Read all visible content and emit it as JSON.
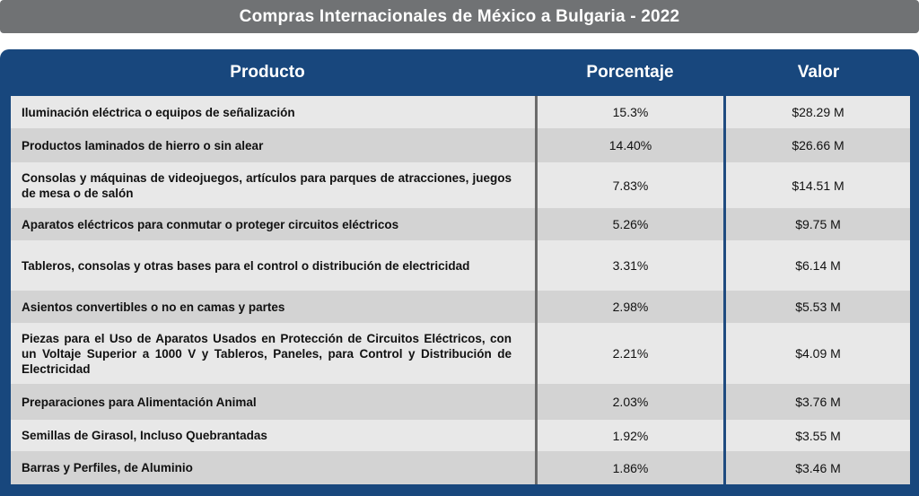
{
  "title": "Compras Internacionales de México a Bulgaria - 2022",
  "columns": {
    "product": "Producto",
    "percent": "Porcentaje",
    "value": "Valor"
  },
  "rows": [
    {
      "product": "Iluminación eléctrica o equipos de señalización",
      "percent": "15.3%",
      "value": "$28.29 M"
    },
    {
      "product": "Productos laminados de hierro o sin alear",
      "percent": "14.40%",
      "value": "$26.66 M"
    },
    {
      "product": "Consolas y máquinas de videojuegos, artículos para parques de atracciones, juegos de mesa o de salón",
      "percent": "7.83%",
      "value": "$14.51 M"
    },
    {
      "product": "Aparatos eléctricos para conmutar o proteger circuitos eléctricos",
      "percent": "5.26%",
      "value": "$9.75 M"
    },
    {
      "product": "Tableros, consolas y otras bases para el control o distribución de electricidad",
      "percent": "3.31%",
      "value": "$6.14 M"
    },
    {
      "product": "Asientos convertibles o no en camas y partes",
      "percent": "2.98%",
      "value": "$5.53 M"
    },
    {
      "product": "Piezas para el Uso de Aparatos Usados en Protección de Circuitos Eléctricos, con un Voltaje Superior a 1000 V y Tableros, Paneles, para Control y Distribución de Electricidad",
      "percent": "2.21%",
      "value": "$4.09 M"
    },
    {
      "product": "Preparaciones para Alimentación Animal",
      "percent": "2.03%",
      "value": "$3.76 M"
    },
    {
      "product": "Semillas de Girasol, Incluso Quebrantadas",
      "percent": "1.92%",
      "value": "$3.55 M"
    },
    {
      "product": "Barras y Perfiles, de Aluminio",
      "percent": "1.86%",
      "value": "$3.46 M"
    }
  ]
}
